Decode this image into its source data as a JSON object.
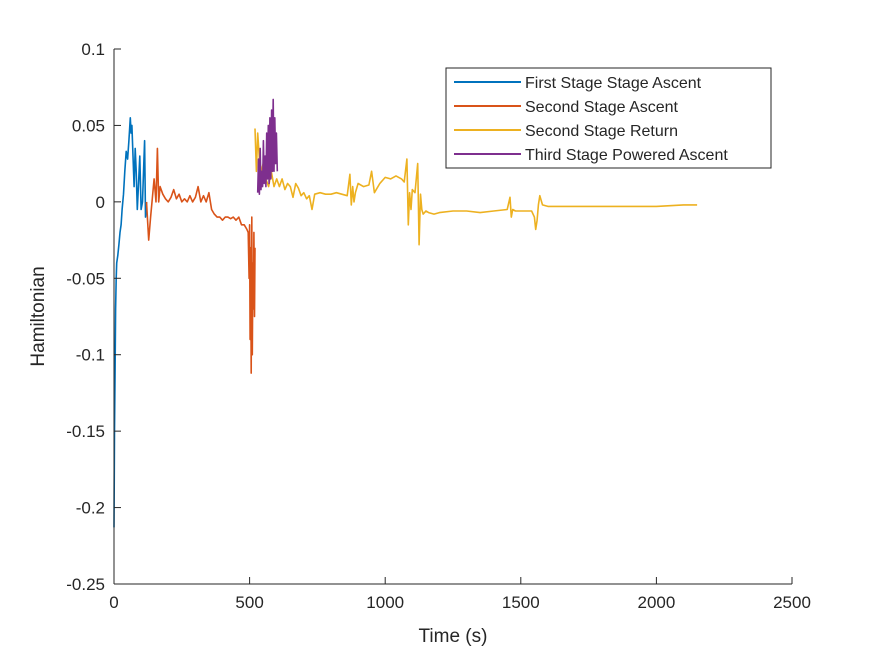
{
  "chart_data": {
    "type": "line",
    "title": "",
    "xlabel": "Time (s)",
    "ylabel": "Hamiltonian",
    "xlim": [
      0,
      2500
    ],
    "ylim": [
      -0.25,
      0.1
    ],
    "xticks": [
      0,
      500,
      1000,
      1500,
      2000,
      2500
    ],
    "xtick_labels": [
      "0",
      "500",
      "1000",
      "1500",
      "2000",
      "2500"
    ],
    "yticks": [
      -0.25,
      -0.2,
      -0.15,
      -0.1,
      -0.05,
      0,
      0.05,
      0.1
    ],
    "ytick_labels": [
      "-0.25",
      "-0.2",
      "-0.15",
      "-0.1",
      "-0.05",
      "0",
      "0.05",
      "0.1"
    ],
    "grid": false,
    "legend_position": "top-right",
    "series": [
      {
        "name": "First Stage Stage Ascent",
        "color": "#0072BD",
        "x": [
          0,
          2,
          4,
          6,
          8,
          10,
          14,
          18,
          22,
          26,
          30,
          35,
          40,
          45,
          50,
          55,
          60,
          63,
          66,
          70,
          74,
          78,
          82,
          86,
          90,
          95,
          100,
          105,
          110,
          113,
          116,
          120
        ],
        "y": [
          -0.213,
          -0.15,
          -0.11,
          -0.07,
          -0.05,
          -0.04,
          -0.035,
          -0.028,
          -0.02,
          -0.015,
          -0.005,
          0.005,
          0.02,
          0.033,
          0.028,
          0.04,
          0.055,
          0.045,
          0.05,
          0.03,
          0.01,
          0.035,
          0.02,
          -0.005,
          0.01,
          0.03,
          -0.005,
          0.0,
          0.025,
          0.04,
          -0.01,
          0.0
        ]
      },
      {
        "name": "Second Stage Ascent",
        "color": "#D95319",
        "x": [
          120,
          128,
          135,
          140,
          148,
          155,
          160,
          165,
          170,
          180,
          190,
          200,
          210,
          220,
          230,
          240,
          250,
          260,
          270,
          280,
          290,
          300,
          310,
          320,
          330,
          340,
          350,
          360,
          370,
          380,
          390,
          400,
          410,
          420,
          430,
          440,
          450,
          460,
          470,
          480,
          490,
          495,
          498,
          500,
          502,
          504,
          506,
          508,
          510,
          512,
          514,
          516,
          518,
          520
        ],
        "y": [
          0.0,
          -0.025,
          -0.01,
          0.0,
          0.015,
          0.0,
          0.035,
          0.0,
          0.01,
          0.005,
          0.002,
          0.0,
          0.003,
          0.008,
          0.002,
          0.005,
          0.0,
          0.002,
          0.0,
          0.004,
          0.0,
          0.003,
          0.01,
          0.0,
          0.004,
          0.0,
          0.006,
          -0.005,
          -0.008,
          -0.01,
          -0.01,
          -0.012,
          -0.01,
          -0.01,
          -0.011,
          -0.01,
          -0.012,
          -0.01,
          -0.015,
          -0.015,
          -0.018,
          -0.02,
          -0.05,
          -0.015,
          -0.09,
          -0.03,
          -0.112,
          -0.01,
          -0.1,
          -0.04,
          -0.07,
          -0.02,
          -0.075,
          -0.03
        ]
      },
      {
        "name": "Second Stage Return",
        "color": "#EDB120",
        "x": [
          520,
          525,
          530,
          540,
          550,
          560,
          570,
          580,
          590,
          600,
          610,
          620,
          630,
          640,
          650,
          660,
          670,
          680,
          690,
          700,
          710,
          720,
          730,
          740,
          760,
          780,
          800,
          820,
          840,
          860,
          870,
          875,
          880,
          885,
          890,
          900,
          920,
          940,
          950,
          960,
          980,
          1000,
          1020,
          1040,
          1060,
          1070,
          1080,
          1085,
          1090,
          1095,
          1100,
          1110,
          1120,
          1125,
          1130,
          1135,
          1140,
          1150,
          1160,
          1180,
          1200,
          1250,
          1300,
          1350,
          1400,
          1450,
          1460,
          1465,
          1470,
          1480,
          1500,
          1520,
          1540,
          1550,
          1555,
          1560,
          1565,
          1570,
          1580,
          1600,
          1650,
          1700,
          1800,
          1900,
          2000,
          2100,
          2150
        ],
        "y": [
          0.048,
          0.02,
          0.045,
          0.018,
          0.025,
          0.015,
          0.01,
          0.02,
          0.01,
          0.015,
          0.01,
          0.015,
          0.008,
          0.012,
          0.01,
          0.003,
          0.012,
          0.009,
          0.004,
          0.006,
          0.002,
          0.004,
          -0.005,
          0.005,
          0.006,
          0.005,
          0.005,
          0.006,
          0.005,
          0.004,
          0.018,
          -0.002,
          0.01,
          0.0,
          0.006,
          0.012,
          0.01,
          0.011,
          0.02,
          0.006,
          0.012,
          0.016,
          0.015,
          0.017,
          0.015,
          0.013,
          0.028,
          -0.015,
          0.006,
          -0.005,
          0.008,
          0.006,
          0.025,
          -0.028,
          0.005,
          -0.005,
          -0.008,
          -0.006,
          -0.007,
          -0.008,
          -0.007,
          -0.006,
          -0.006,
          -0.007,
          -0.006,
          -0.005,
          0.003,
          -0.01,
          -0.005,
          -0.006,
          -0.006,
          -0.006,
          -0.006,
          -0.01,
          -0.018,
          -0.012,
          -0.002,
          0.004,
          -0.002,
          -0.003,
          -0.003,
          -0.003,
          -0.003,
          -0.003,
          -0.003,
          -0.002,
          -0.002
        ]
      },
      {
        "name": "Third Stage Powered Ascent",
        "color": "#7E2F8E",
        "x": [
          530,
          533,
          536,
          539,
          542,
          545,
          548,
          551,
          554,
          557,
          560,
          563,
          566,
          569,
          572,
          575,
          578,
          581,
          584,
          587,
          590,
          593,
          596,
          599,
          602
        ],
        "y": [
          0.006,
          0.028,
          0.005,
          0.035,
          0.008,
          0.02,
          0.01,
          0.04,
          0.012,
          0.03,
          0.01,
          0.045,
          0.015,
          0.05,
          0.012,
          0.055,
          0.015,
          0.06,
          0.02,
          0.067,
          0.02,
          0.055,
          0.025,
          0.045,
          0.02
        ]
      }
    ]
  }
}
